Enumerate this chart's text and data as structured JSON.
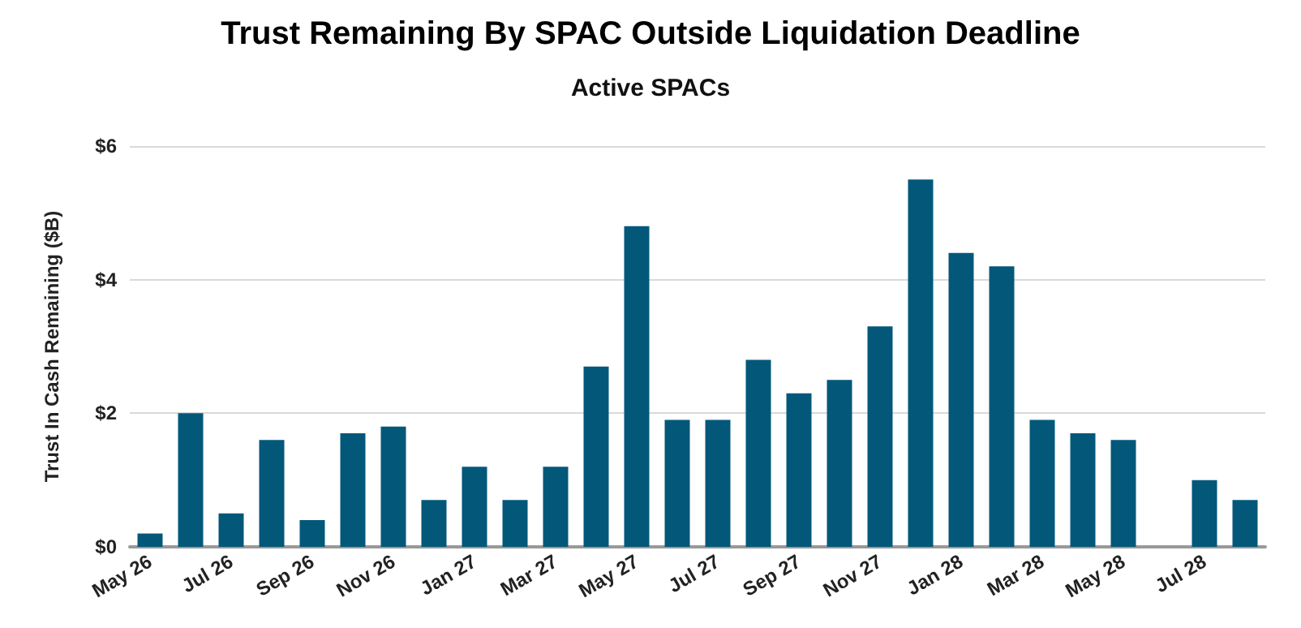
{
  "chart_data": {
    "type": "bar",
    "title": "Trust Remaining By SPAC Outside Liquidation Deadline",
    "subtitle": "Active SPACs",
    "ylabel": "Trust In Cash Remaining ($B)",
    "categories": [
      "May 26",
      null,
      "Jul 26",
      null,
      "Sep 26",
      null,
      "Nov 26",
      null,
      "Jan 27",
      null,
      "Mar 27",
      null,
      "May 27",
      null,
      "Jul 27",
      null,
      "Sep 27",
      null,
      "Nov 27",
      null,
      "Jan 28",
      null,
      "Mar 28",
      null,
      "May 28",
      null,
      "Jul 28",
      null
    ],
    "values": [
      0.2,
      2.0,
      0.5,
      1.6,
      0.4,
      1.7,
      1.8,
      0.7,
      1.2,
      0.7,
      1.2,
      2.7,
      4.8,
      1.9,
      1.9,
      2.8,
      2.3,
      2.5,
      3.3,
      5.5,
      4.4,
      4.2,
      1.9,
      1.7,
      1.6,
      null,
      1.0,
      0.7
    ],
    "color": "#03587a",
    "ylim": [
      0,
      6
    ],
    "yticks": [
      {
        "value": 0,
        "label": "$0"
      },
      {
        "value": 2,
        "label": "$2"
      },
      {
        "value": 4,
        "label": "$4"
      },
      {
        "value": 6,
        "label": "$6"
      }
    ],
    "grid": "y"
  }
}
